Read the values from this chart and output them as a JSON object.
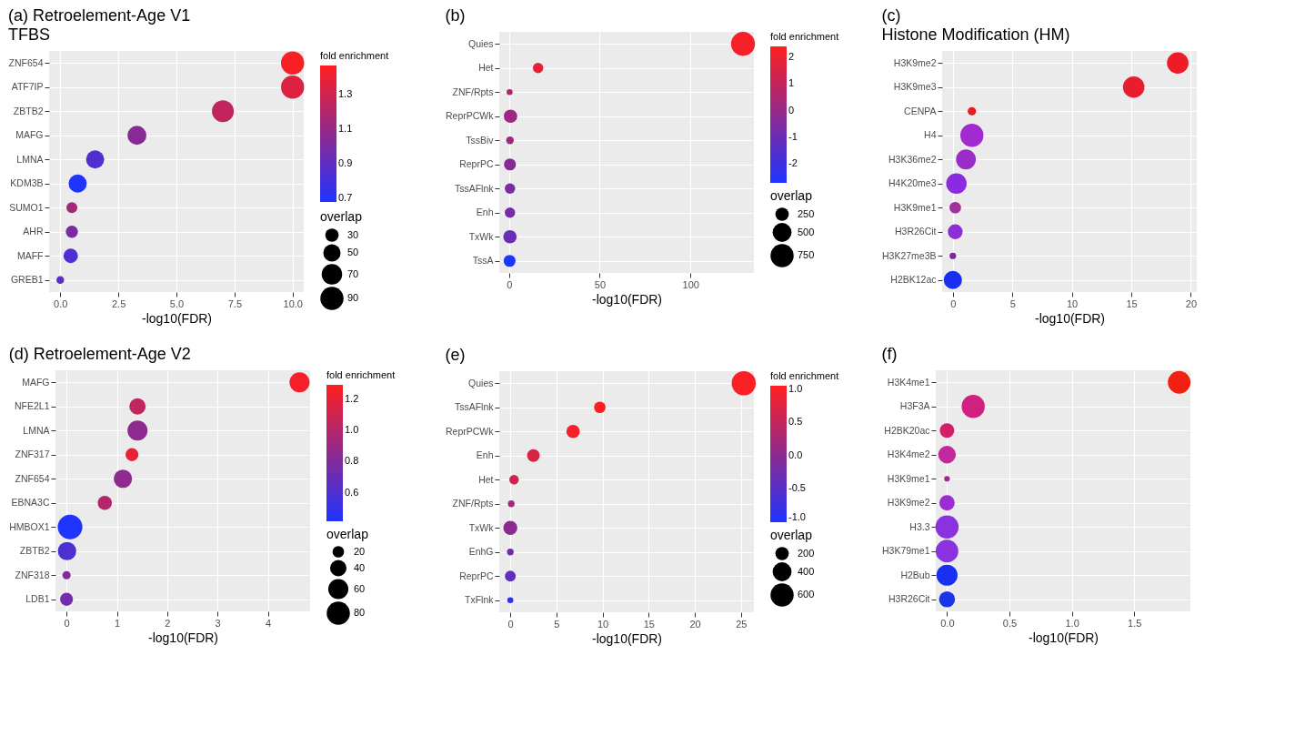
{
  "chart_data": [
    {
      "type": "bubble",
      "orientation": "horizontal",
      "title": "(a) Retroelement-Age V1",
      "subtitle": "TFBS",
      "xlabel": "-log10(FDR)",
      "marker": "circle",
      "grid": true,
      "categories": [
        "ZNF654",
        "ATF7IP",
        "ZBTB2",
        "MAFG",
        "LMNA",
        "KDM3B",
        "SUMO1",
        "AHR",
        "MAFF",
        "GREB1"
      ],
      "values": [
        10.0,
        10.0,
        7.0,
        3.3,
        1.5,
        0.75,
        0.5,
        0.5,
        0.45,
        0
      ],
      "sizes": [
        90,
        90,
        80,
        60,
        55,
        55,
        20,
        25,
        35,
        10
      ],
      "cvalues": [
        1.45,
        1.35,
        1.25,
        1.05,
        0.85,
        0.68,
        1.15,
        1.0,
        0.85,
        0.9
      ],
      "xlim": [
        -0.48,
        10.48
      ],
      "xticks": [
        {
          "value": 0,
          "label": "0.0"
        },
        2.5,
        {
          "value": 5,
          "label": "5.0"
        },
        7.5,
        {
          "value": 10,
          "label": "10.0"
        }
      ],
      "clabel": "fold enrichment",
      "clim": [
        0.68,
        1.47
      ],
      "cticks": [
        0.7,
        0.9,
        1.1,
        1.3
      ],
      "legend_title": "overlap",
      "size_legend": [
        30,
        50,
        70,
        90
      ]
    },
    {
      "type": "bubble",
      "orientation": "horizontal",
      "title": "(b)",
      "xlabel": "-log10(FDR)",
      "marker": "circle",
      "grid": true,
      "categories": [
        "Quies",
        "Het",
        "ZNF/Rpts",
        "ReprPCWk",
        "TssBiv",
        "ReprPC",
        "TssAFlnk",
        "Enh",
        "TxWk",
        "TssA"
      ],
      "values": [
        129,
        16,
        0.3,
        0.8,
        0.5,
        0.5,
        0.5,
        0.5,
        0.5,
        0.3
      ],
      "sizes": [
        800,
        150,
        50,
        250,
        80,
        200,
        150,
        150,
        250,
        200
      ],
      "cvalues": [
        2.2,
        1.8,
        0.5,
        0.2,
        0.2,
        -0.3,
        -0.6,
        -0.7,
        -1.0,
        -2.7
      ],
      "xlim": [
        -5.4,
        135
      ],
      "xticks": [
        0,
        50,
        100
      ],
      "clabel": "fold enrichment",
      "clim": [
        -2.7,
        2.4
      ],
      "cticks": [
        -2,
        -1,
        0,
        1,
        2
      ],
      "legend_title": "overlap",
      "size_legend": [
        250,
        500,
        750
      ]
    },
    {
      "type": "bubble",
      "orientation": "horizontal",
      "title": "(c)",
      "subtitle": "Histone Modification (HM)",
      "xlabel": "-log10(FDR)",
      "marker": "circle",
      "grid": true,
      "categories": [
        "H3K9me2",
        "H3K9me3",
        "CENPA",
        "H4",
        "H3K36me2",
        "H4K20me3",
        "H3K9me1",
        "H3R26Cit",
        "H3K27me3B",
        "H2BK12ac"
      ],
      "values": [
        18.9,
        15.2,
        1.6,
        1.6,
        1.1,
        0.3,
        0.2,
        0.2,
        0,
        0
      ],
      "sizes": [
        0.86,
        0.86,
        0.13,
        1,
        0.73,
        0.78,
        0.25,
        0.41,
        0.08,
        0.62
      ],
      "colors": [
        "#ee1c25",
        "#e81d2d",
        "#e02020",
        "#a12ad0",
        "#9a2dc8",
        "#8a2be2",
        "#a0309a",
        "#8e2ed8",
        "#7a2aa0",
        "#1a2ef0"
      ],
      "xlim": [
        -0.9,
        20.5
      ],
      "xticks": [
        0,
        5,
        10,
        15,
        20
      ]
    },
    {
      "type": "bubble",
      "orientation": "horizontal",
      "title": "(d) Retroelement-Age V2",
      "xlabel": "-log10(FDR)",
      "marker": "circle",
      "grid": true,
      "categories": [
        "MAFG",
        "NFE2L1",
        "LMNA",
        "ZNF317",
        "ZNF654",
        "EBNA3C",
        "HMBOX1",
        "ZBTB2",
        "ZNF318",
        "LDB1"
      ],
      "values": [
        4.63,
        1.41,
        1.41,
        1.3,
        1.12,
        0.76,
        0.07,
        0.01,
        0,
        0
      ],
      "sizes": [
        60,
        40,
        60,
        25,
        50,
        30,
        90,
        50,
        10,
        25
      ],
      "cvalues": [
        1.25,
        1.05,
        0.85,
        1.2,
        0.85,
        1.0,
        0.42,
        0.6,
        0.8,
        0.75
      ],
      "xlim": [
        -0.22,
        4.84
      ],
      "xticks": [
        0,
        1,
        2,
        3,
        4
      ],
      "clabel": "fold enrichment",
      "clim": [
        0.42,
        1.29
      ],
      "cticks": [
        {
          "value": 0.6,
          "label": "0.6"
        },
        {
          "value": 0.8,
          "label": "0.8"
        },
        {
          "value": 1.0,
          "label": "1.0"
        },
        {
          "value": 1.2,
          "label": "1.2"
        }
      ],
      "legend_title": "overlap",
      "size_legend": [
        20,
        40,
        60,
        80
      ]
    },
    {
      "type": "bubble",
      "orientation": "horizontal",
      "title": "(e)",
      "xlabel": "-log10(FDR)",
      "marker": "circle",
      "grid": true,
      "categories": [
        "Quies",
        "TssAFlnk",
        "ReprPCWk",
        "Enh",
        "Het",
        "ZNF/Rpts",
        "TxWk",
        "EnhG",
        "ReprPC",
        "TxFlnk"
      ],
      "values": [
        25.3,
        9.7,
        6.8,
        2.5,
        0.4,
        0.1,
        0,
        0,
        0,
        0
      ],
      "sizes": [
        650,
        150,
        200,
        180,
        100,
        50,
        220,
        50,
        130,
        40
      ],
      "cvalues": [
        1.0,
        1.0,
        0.95,
        0.7,
        0.6,
        0.2,
        0.0,
        -0.2,
        -0.4,
        -0.9
      ],
      "xlim": [
        -1.2,
        26.4
      ],
      "xticks": [
        0,
        5,
        10,
        15,
        20,
        25
      ],
      "clabel": "fold enrichment",
      "clim": [
        -1.0,
        1.05
      ],
      "cticks": [
        {
          "value": -1,
          "label": "-1.0"
        },
        -0.5,
        {
          "value": 0,
          "label": "0.0"
        },
        0.5,
        {
          "value": 1,
          "label": "1.0"
        }
      ],
      "legend_title": "overlap",
      "size_legend": [
        200,
        400,
        600
      ]
    },
    {
      "type": "bubble",
      "orientation": "horizontal",
      "title": "(f)",
      "xlabel": "-log10(FDR)",
      "marker": "circle",
      "grid": true,
      "categories": [
        "H3K4me1",
        "H3F3A",
        "H2BK20ac",
        "H3K4me2",
        "H3K9me1",
        "H3K9me2",
        "H3.3",
        "H3K79me1",
        "H2Bub",
        "H3R26Cit"
      ],
      "values": [
        1.86,
        0.21,
        0,
        0,
        0,
        0,
        0,
        0,
        0,
        0
      ],
      "sizes": [
        0.95,
        1,
        0.39,
        0.58,
        0.06,
        0.44,
        1,
        0.95,
        0.82,
        0.48
      ],
      "colors": [
        "#f22010",
        "#d02080",
        "#d0206a",
        "#c02a9a",
        "#a02a90",
        "#9a2ed0",
        "#8a32e0",
        "#8a32e0",
        "#1a30f0",
        "#1a35e8"
      ],
      "xlim": [
        -0.09,
        1.95
      ],
      "xticks": [
        {
          "value": 0,
          "label": "0.0"
        },
        0.5,
        {
          "value": 1,
          "label": "1.0"
        },
        1.5
      ]
    }
  ]
}
